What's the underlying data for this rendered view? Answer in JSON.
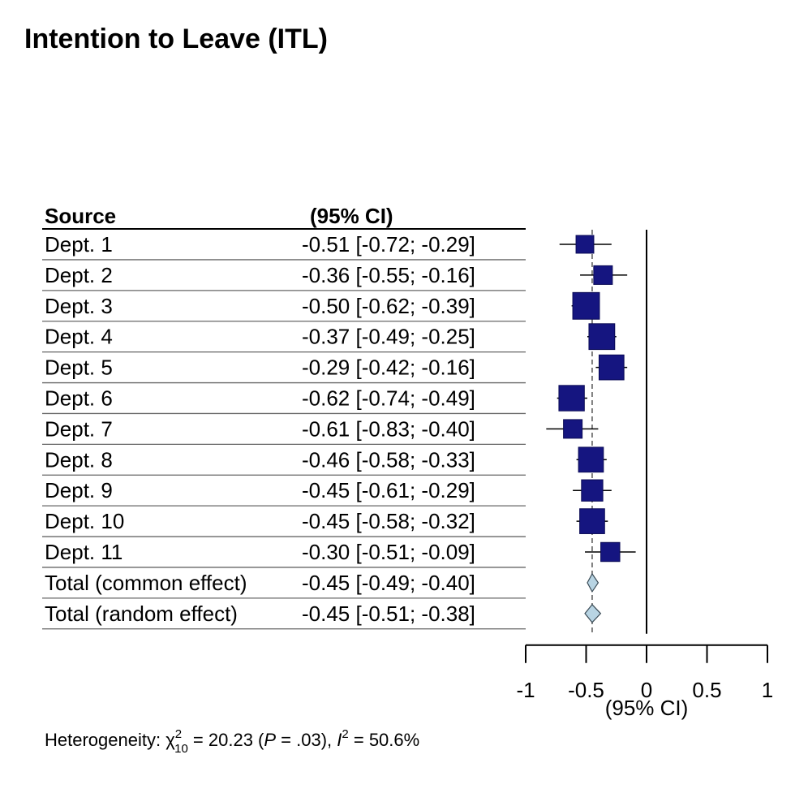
{
  "chart_data": {
    "type": "forest",
    "title": "Intention to Leave (ITL)",
    "columns": {
      "source": "Source",
      "ci": "(95% CI)"
    },
    "rows": [
      {
        "label": "Dept. 1",
        "text": "-0.51 [-0.72; -0.29]",
        "est": -0.51,
        "lo": -0.72,
        "hi": -0.29,
        "weight": 0.45
      },
      {
        "label": "Dept. 2",
        "text": "-0.36 [-0.55; -0.16]",
        "est": -0.36,
        "lo": -0.55,
        "hi": -0.16,
        "weight": 0.5
      },
      {
        "label": "Dept. 3",
        "text": "-0.50 [-0.62; -0.39]",
        "est": -0.5,
        "lo": -0.62,
        "hi": -0.39,
        "weight": 0.95
      },
      {
        "label": "Dept. 4",
        "text": "-0.37 [-0.49; -0.25]",
        "est": -0.37,
        "lo": -0.49,
        "hi": -0.25,
        "weight": 0.9
      },
      {
        "label": "Dept. 5",
        "text": "-0.29 [-0.42; -0.16]",
        "est": -0.29,
        "lo": -0.42,
        "hi": -0.16,
        "weight": 0.85
      },
      {
        "label": "Dept. 6",
        "text": "-0.62 [-0.74; -0.49]",
        "est": -0.62,
        "lo": -0.74,
        "hi": -0.49,
        "weight": 0.88
      },
      {
        "label": "Dept. 7",
        "text": "-0.61 [-0.83; -0.40]",
        "est": -0.61,
        "lo": -0.83,
        "hi": -0.4,
        "weight": 0.5
      },
      {
        "label": "Dept. 8",
        "text": "-0.46 [-0.58; -0.33]",
        "est": -0.46,
        "lo": -0.58,
        "hi": -0.33,
        "weight": 0.85
      },
      {
        "label": "Dept. 9",
        "text": "-0.45 [-0.61; -0.29]",
        "est": -0.45,
        "lo": -0.61,
        "hi": -0.29,
        "weight": 0.65
      },
      {
        "label": "Dept. 10",
        "text": "-0.45 [-0.58; -0.32]",
        "est": -0.45,
        "lo": -0.58,
        "hi": -0.32,
        "weight": 0.85
      },
      {
        "label": "Dept. 11",
        "text": "-0.30 [-0.51; -0.09]",
        "est": -0.3,
        "lo": -0.51,
        "hi": -0.09,
        "weight": 0.52
      }
    ],
    "totals": [
      {
        "label": "Total (common effect)",
        "text": "-0.45 [-0.49; -0.40]",
        "est": -0.45,
        "lo": -0.49,
        "hi": -0.4
      },
      {
        "label": "Total (random effect)",
        "text": "-0.45 [-0.51; -0.38]",
        "est": -0.45,
        "lo": -0.51,
        "hi": -0.38
      }
    ],
    "pooled_estimate": -0.45,
    "null_value": 0,
    "xlim": [
      -1,
      1
    ],
    "xticks": [
      -1,
      -0.5,
      0,
      0.5,
      1
    ],
    "xtick_labels": [
      "-1",
      "-0.5",
      "0",
      "0.5",
      "1"
    ],
    "xlabel": "(95% CI)",
    "heterogeneity": {
      "prefix": "Heterogeneity: ",
      "chi": "χ",
      "chi_sup": "2",
      "chi_sub": "10",
      "chi_value": " = 20.23 (",
      "p_symbol": "P",
      "p_value": " = .03), ",
      "i_symbol": "I",
      "i_sup": "2",
      "i_value": " = 50.6%"
    },
    "colors": {
      "square_fill": "#151580",
      "square_stroke": "#0a0a55",
      "diamond_fill": "#b8d4e3",
      "diamond_stroke": "#3a4a55",
      "pooled_line": "#555555",
      "row_rule": "#666666"
    }
  }
}
